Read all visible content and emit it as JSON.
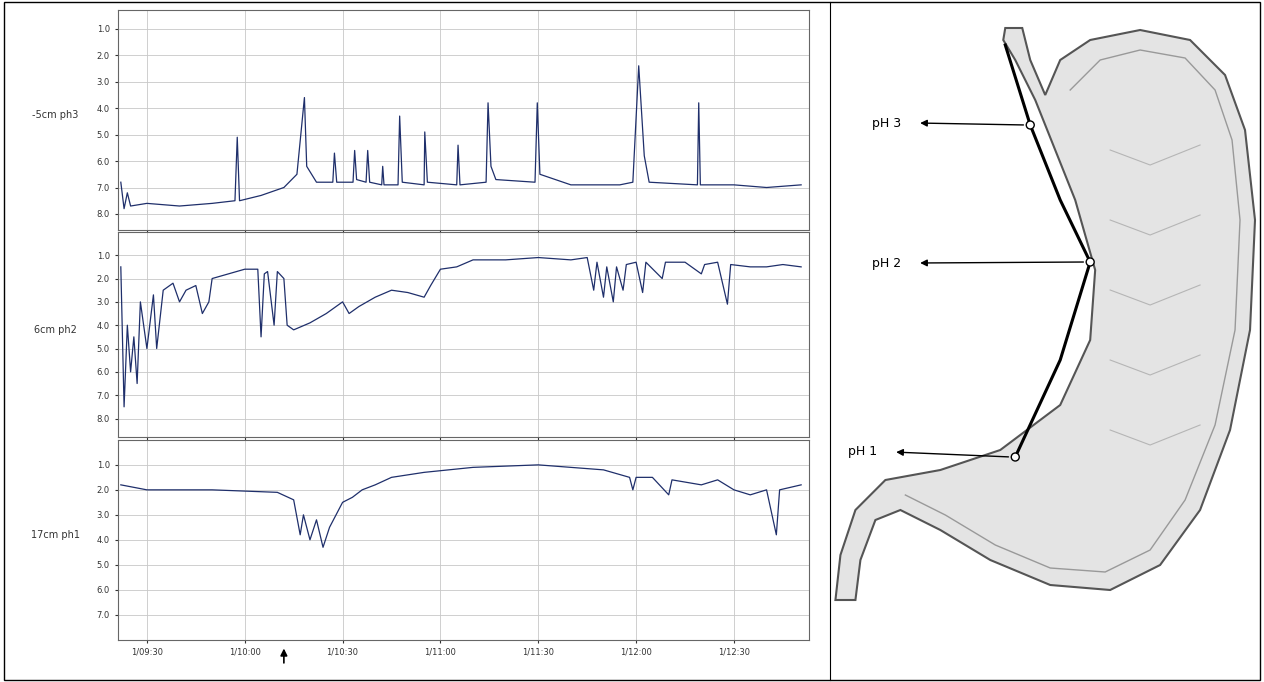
{
  "chart_data": [
    {
      "type": "line",
      "y_label": "-5cm ph3",
      "color": "#1f2f6b",
      "grid": true,
      "tick_labels": "y",
      "xlim": [
        561,
        773
      ],
      "ylim": [
        8.6,
        0.3
      ],
      "yticks": [
        1.0,
        2.0,
        3.0,
        4.0,
        5.0,
        6.0,
        7.0,
        8.0
      ],
      "xticks": [
        {
          "value": 570,
          "label": "1/09:30"
        },
        {
          "value": 600,
          "label": "1/10:00"
        },
        {
          "value": 630,
          "label": "1/10:30"
        },
        {
          "value": 660,
          "label": "1/11:00"
        },
        {
          "value": 690,
          "label": "1/11:30"
        },
        {
          "value": 720,
          "label": "1/12:00"
        },
        {
          "value": 750,
          "label": "1/12:30"
        }
      ],
      "x": [
        562,
        563,
        564,
        565,
        570,
        580,
        590,
        597,
        597.7,
        598.4,
        605,
        612,
        616,
        618.3,
        619,
        622,
        627,
        627.5,
        628.2,
        633.2,
        633.7,
        634.3,
        637.2,
        637.7,
        638.3,
        642,
        642.3,
        642.7,
        647,
        647.5,
        648.3,
        655,
        655.2,
        656,
        665,
        665.4,
        666,
        674,
        674.6,
        675.5,
        677,
        689,
        689.7,
        690.5,
        700,
        715,
        719,
        720.8,
        722.5,
        724,
        738.8,
        739.2,
        739.7,
        750,
        760,
        770.6
      ],
      "values": [
        6.8,
        7.8,
        7.2,
        7.7,
        7.6,
        7.7,
        7.6,
        7.5,
        5.1,
        7.5,
        7.3,
        7.0,
        6.5,
        3.6,
        6.2,
        6.8,
        6.8,
        5.7,
        6.8,
        6.8,
        5.6,
        6.7,
        6.8,
        5.6,
        6.8,
        6.9,
        6.2,
        6.9,
        6.9,
        4.3,
        6.8,
        6.9,
        4.9,
        6.8,
        6.9,
        5.4,
        6.9,
        6.8,
        3.8,
        6.2,
        6.7,
        6.8,
        3.8,
        6.5,
        6.9,
        6.9,
        6.8,
        2.4,
        5.8,
        6.8,
        6.9,
        3.8,
        6.9,
        6.9,
        7.0,
        6.9
      ]
    },
    {
      "type": "line",
      "y_label": "6cm ph2",
      "color": "#1f2f6b",
      "grid": true,
      "tick_labels": "y",
      "xlim": [
        561,
        773
      ],
      "ylim": [
        8.8,
        0.0
      ],
      "yticks": [
        1.0,
        2.0,
        3.0,
        4.0,
        5.0,
        6.0,
        7.0,
        8.0
      ],
      "xticks": [
        {
          "value": 570,
          "label": "1/09:30"
        },
        {
          "value": 600,
          "label": "1/10:00"
        },
        {
          "value": 630,
          "label": "1/10:30"
        },
        {
          "value": 660,
          "label": "1/11:00"
        },
        {
          "value": 690,
          "label": "1/11:30"
        },
        {
          "value": 720,
          "label": "1/12:00"
        },
        {
          "value": 750,
          "label": "1/12:30"
        }
      ],
      "x": [
        562,
        563,
        564,
        565,
        566,
        567,
        568,
        570,
        572,
        573,
        575,
        578,
        580,
        582,
        585,
        587,
        589,
        590,
        595,
        600,
        604,
        605,
        606,
        607,
        609,
        610,
        612,
        613,
        615,
        620,
        625,
        630,
        632,
        635,
        640,
        645,
        650,
        655,
        657,
        660,
        665,
        670,
        680,
        690,
        700,
        705,
        707,
        708,
        710,
        711,
        713,
        714,
        716,
        717,
        720,
        722,
        723,
        728,
        729,
        735,
        740,
        741,
        745,
        748,
        749,
        755,
        760,
        765,
        770.6
      ],
      "values": [
        1.5,
        7.5,
        4.0,
        6.0,
        4.5,
        6.5,
        3.0,
        5.0,
        2.7,
        5.0,
        2.5,
        2.2,
        3.0,
        2.5,
        2.3,
        3.5,
        3.0,
        2.0,
        1.8,
        1.6,
        1.6,
        4.5,
        1.8,
        1.7,
        4.0,
        1.7,
        2.0,
        4.0,
        4.2,
        3.9,
        3.5,
        3.0,
        3.5,
        3.2,
        2.8,
        2.5,
        2.6,
        2.8,
        2.3,
        1.6,
        1.5,
        1.2,
        1.2,
        1.1,
        1.2,
        1.1,
        2.5,
        1.3,
        2.8,
        1.5,
        3.0,
        1.5,
        2.5,
        1.4,
        1.3,
        2.6,
        1.3,
        2.0,
        1.3,
        1.3,
        1.8,
        1.4,
        1.3,
        3.1,
        1.4,
        1.5,
        1.5,
        1.4,
        1.5
      ]
    },
    {
      "type": "line",
      "y_label": "17cm ph1",
      "color": "#1f2f6b",
      "grid": true,
      "xlim": [
        561,
        773
      ],
      "ylim": [
        8.0,
        0.0
      ],
      "yticks": [
        1.0,
        2.0,
        3.0,
        4.0,
        5.0,
        6.0,
        7.0
      ],
      "xticks": [
        {
          "value": 570,
          "label": "1/09:30"
        },
        {
          "value": 600,
          "label": "1/10:00"
        },
        {
          "value": 630,
          "label": "1/10:30"
        },
        {
          "value": 660,
          "label": "1/11:00"
        },
        {
          "value": 690,
          "label": "1/11:30"
        },
        {
          "value": 720,
          "label": "1/12:00"
        },
        {
          "value": 750,
          "label": "1/12:30"
        }
      ],
      "event_marker": 612,
      "x": [
        562,
        570,
        590,
        610,
        615,
        617,
        618,
        620,
        622,
        624,
        626,
        628,
        630,
        633,
        636,
        640,
        645,
        655,
        670,
        690,
        710,
        718,
        719,
        720,
        725,
        730,
        731,
        740,
        745,
        750,
        755,
        760,
        763,
        764,
        770.6
      ],
      "values": [
        1.8,
        2.0,
        2.0,
        2.1,
        2.4,
        3.8,
        3.0,
        4.0,
        3.2,
        4.3,
        3.5,
        3.0,
        2.5,
        2.3,
        2.0,
        1.8,
        1.5,
        1.3,
        1.1,
        1.0,
        1.2,
        1.5,
        2.0,
        1.5,
        1.5,
        2.2,
        1.6,
        1.8,
        1.6,
        2.0,
        2.2,
        2.0,
        3.8,
        2.0,
        1.8
      ]
    }
  ],
  "diagram": {
    "labels": [
      "pH 3",
      "pH 2",
      "pH 1"
    ]
  }
}
